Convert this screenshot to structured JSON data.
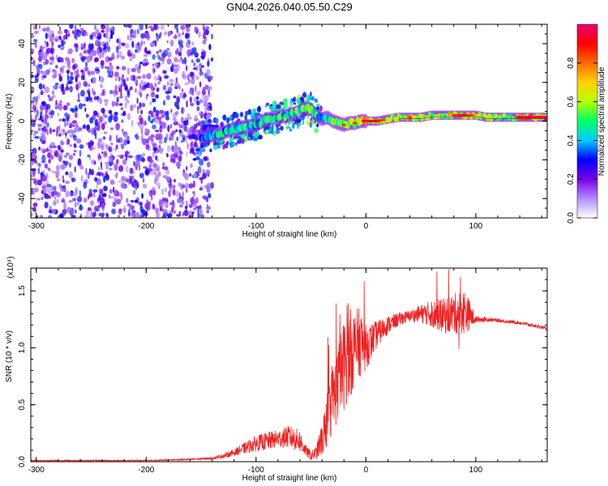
{
  "title": "GN04.2026.040.05.50.C29",
  "chart_data": [
    {
      "type": "heatmap",
      "name": "spectrogram",
      "xlabel": "Height of straight line (km)",
      "ylabel": "Frequency (Hz)",
      "xlim": [
        -305,
        165
      ],
      "ylim": [
        -50,
        50
      ],
      "xticks": [
        -300,
        -200,
        -100,
        0,
        100
      ],
      "yticks": [
        -40,
        -20,
        0,
        20,
        40
      ],
      "colorbar": {
        "label": "Normalized spectral amplitude",
        "range": [
          0,
          1
        ],
        "ticks": [
          "0.0",
          "0.2",
          "0.4",
          "0.6",
          "0.8"
        ],
        "tick_values": [
          0.0,
          0.2,
          0.4,
          0.6,
          0.8
        ],
        "colors": [
          "#ffffff",
          "#b38cff",
          "#7a00e6",
          "#0000ff",
          "#00ccff",
          "#00ff66",
          "#b5ff00",
          "#ffd200",
          "#ff6a00",
          "#ff0000",
          "#e8006e"
        ]
      },
      "noise_region_x": [
        -305,
        -140
      ],
      "ridge": {
        "x": [
          -160,
          -150,
          -140,
          -130,
          -120,
          -110,
          -100,
          -90,
          -80,
          -70,
          -60,
          -55,
          -50,
          -45,
          -40,
          -35,
          -30,
          -25,
          -20,
          -15,
          -10,
          -5,
          0,
          10,
          20,
          30,
          40,
          50,
          60,
          70,
          80,
          90,
          100,
          110,
          120,
          130,
          140,
          150,
          165
        ],
        "freq": [
          -10,
          -9,
          -7,
          -6,
          -4,
          -3,
          -2,
          1,
          2,
          3,
          5,
          7,
          6,
          3,
          1,
          2,
          0,
          -1,
          -2,
          -1,
          -1,
          0,
          0,
          0,
          1,
          2,
          2,
          2,
          3,
          3,
          3,
          3,
          3,
          2,
          2,
          2,
          2,
          2,
          2
        ],
        "amp": [
          0.35,
          0.45,
          0.5,
          0.55,
          0.55,
          0.6,
          0.6,
          0.62,
          0.6,
          0.62,
          0.65,
          0.7,
          0.72,
          0.6,
          0.55,
          0.6,
          0.7,
          0.75,
          0.85,
          0.8,
          0.85,
          0.8,
          0.95,
          0.9,
          0.8,
          0.75,
          0.85,
          0.8,
          0.75,
          0.8,
          0.85,
          0.9,
          0.8,
          0.7,
          0.7,
          0.75,
          0.9,
          0.95,
          0.95
        ]
      }
    },
    {
      "type": "line",
      "name": "snr",
      "xlabel": "Height of straight line (km)",
      "ylabel": "SNR (10 * v/v)",
      "y_multiplier": "(x10⁴)",
      "xlim": [
        -305,
        165
      ],
      "ylim": [
        0,
        1.7
      ],
      "xticks": [
        -300,
        -200,
        -100,
        0,
        100
      ],
      "yticks": [
        "0.0",
        "0.5",
        "1.0",
        "1.5"
      ],
      "ytick_values": [
        0.0,
        0.5,
        1.0,
        1.5
      ],
      "color": "#ee2222",
      "x": [
        -305,
        -250,
        -200,
        -160,
        -140,
        -130,
        -120,
        -110,
        -100,
        -90,
        -80,
        -70,
        -60,
        -55,
        -50,
        -45,
        -40,
        -35,
        -30,
        -25,
        -20,
        -15,
        -10,
        -5,
        0,
        10,
        20,
        30,
        40,
        50,
        60,
        70,
        80,
        90,
        95,
        100,
        110,
        120,
        130,
        140,
        150,
        165
      ],
      "y": [
        0.01,
        0.01,
        0.01,
        0.02,
        0.03,
        0.05,
        0.08,
        0.12,
        0.16,
        0.18,
        0.2,
        0.22,
        0.18,
        0.1,
        0.05,
        0.08,
        0.2,
        0.38,
        0.55,
        0.7,
        0.85,
        0.95,
        1.0,
        1.05,
        1.0,
        1.12,
        1.2,
        1.25,
        1.28,
        1.3,
        1.3,
        1.28,
        1.3,
        1.32,
        1.28,
        1.25,
        1.25,
        1.24,
        1.23,
        1.22,
        1.2,
        1.17
      ],
      "noise": [
        0.005,
        0.005,
        0.005,
        0.006,
        0.01,
        0.02,
        0.03,
        0.05,
        0.07,
        0.08,
        0.08,
        0.1,
        0.1,
        0.05,
        0.04,
        0.06,
        0.15,
        0.25,
        0.3,
        0.35,
        0.4,
        0.4,
        0.35,
        0.3,
        0.2,
        0.12,
        0.08,
        0.06,
        0.05,
        0.08,
        0.12,
        0.15,
        0.18,
        0.2,
        0.12,
        0.03,
        0.02,
        0.015,
        0.015,
        0.015,
        0.015,
        0.015
      ]
    }
  ]
}
